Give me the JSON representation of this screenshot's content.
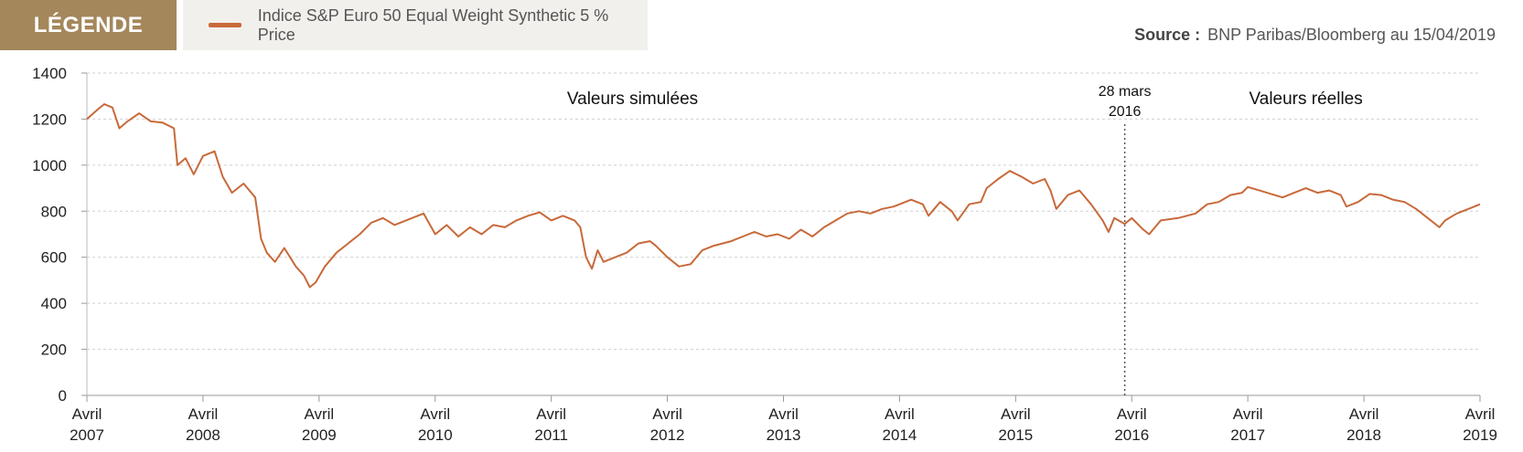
{
  "legend": {
    "tag": "LÉGENDE",
    "series_label": "Indice S&P Euro 50 Equal Weight Synthetic 5 % Price"
  },
  "source": {
    "label": "Source :",
    "text": "BNP Paribas/Bloomberg au 15/04/2019"
  },
  "colors": {
    "accent": "#a4875b",
    "line": "#c8693a",
    "grid": "#cfcfcf"
  },
  "chart_data": {
    "type": "line",
    "title": "",
    "xlabel": "",
    "ylabel": "",
    "ylim": [
      0,
      1400
    ],
    "xlim": [
      2007.3,
      2019.3
    ],
    "y_ticks": [
      0,
      200,
      400,
      600,
      800,
      1000,
      1200,
      1400
    ],
    "x_ticks": [
      {
        "x": 2007.3,
        "line1": "Avril",
        "line2": "2007"
      },
      {
        "x": 2008.3,
        "line1": "Avril",
        "line2": "2008"
      },
      {
        "x": 2009.3,
        "line1": "Avril",
        "line2": "2009"
      },
      {
        "x": 2010.3,
        "line1": "Avril",
        "line2": "2010"
      },
      {
        "x": 2011.3,
        "line1": "Avril",
        "line2": "2011"
      },
      {
        "x": 2012.3,
        "line1": "Avril",
        "line2": "2012"
      },
      {
        "x": 2013.3,
        "line1": "Avril",
        "line2": "2013"
      },
      {
        "x": 2014.3,
        "line1": "Avril",
        "line2": "2014"
      },
      {
        "x": 2015.3,
        "line1": "Avril",
        "line2": "2015"
      },
      {
        "x": 2016.3,
        "line1": "Avril",
        "line2": "2016"
      },
      {
        "x": 2017.3,
        "line1": "Avril",
        "line2": "2017"
      },
      {
        "x": 2018.3,
        "line1": "Avril",
        "line2": "2018"
      },
      {
        "x": 2019.3,
        "line1": "Avril",
        "line2": "2019"
      }
    ],
    "grid": true,
    "annotations": {
      "simulated": "Valeurs simulées",
      "real": "Valeurs réelles",
      "marker_line1": "28 mars",
      "marker_line2": "2016",
      "marker_x": 2016.24
    },
    "series": [
      {
        "name": "Indice S&P Euro 50 Equal Weight Synthetic 5 % Price",
        "points": [
          [
            2007.3,
            1200
          ],
          [
            2007.4,
            1245
          ],
          [
            2007.45,
            1265
          ],
          [
            2007.52,
            1250
          ],
          [
            2007.58,
            1160
          ],
          [
            2007.65,
            1190
          ],
          [
            2007.75,
            1225
          ],
          [
            2007.85,
            1190
          ],
          [
            2007.95,
            1185
          ],
          [
            2008.05,
            1160
          ],
          [
            2008.08,
            1000
          ],
          [
            2008.15,
            1030
          ],
          [
            2008.22,
            960
          ],
          [
            2008.3,
            1040
          ],
          [
            2008.4,
            1060
          ],
          [
            2008.47,
            950
          ],
          [
            2008.55,
            880
          ],
          [
            2008.65,
            920
          ],
          [
            2008.75,
            860
          ],
          [
            2008.8,
            680
          ],
          [
            2008.85,
            620
          ],
          [
            2008.92,
            580
          ],
          [
            2009.0,
            640
          ],
          [
            2009.1,
            560
          ],
          [
            2009.17,
            520
          ],
          [
            2009.22,
            470
          ],
          [
            2009.27,
            490
          ],
          [
            2009.35,
            560
          ],
          [
            2009.45,
            620
          ],
          [
            2009.55,
            660
          ],
          [
            2009.65,
            700
          ],
          [
            2009.75,
            750
          ],
          [
            2009.85,
            770
          ],
          [
            2009.95,
            740
          ],
          [
            2010.1,
            770
          ],
          [
            2010.2,
            790
          ],
          [
            2010.3,
            700
          ],
          [
            2010.4,
            740
          ],
          [
            2010.5,
            690
          ],
          [
            2010.6,
            730
          ],
          [
            2010.7,
            700
          ],
          [
            2010.8,
            740
          ],
          [
            2010.9,
            730
          ],
          [
            2011.0,
            760
          ],
          [
            2011.1,
            780
          ],
          [
            2011.2,
            795
          ],
          [
            2011.3,
            760
          ],
          [
            2011.4,
            780
          ],
          [
            2011.5,
            760
          ],
          [
            2011.55,
            730
          ],
          [
            2011.6,
            600
          ],
          [
            2011.65,
            550
          ],
          [
            2011.7,
            630
          ],
          [
            2011.75,
            580
          ],
          [
            2011.85,
            600
          ],
          [
            2011.95,
            620
          ],
          [
            2012.05,
            660
          ],
          [
            2012.15,
            670
          ],
          [
            2012.2,
            650
          ],
          [
            2012.3,
            600
          ],
          [
            2012.4,
            560
          ],
          [
            2012.5,
            570
          ],
          [
            2012.6,
            630
          ],
          [
            2012.7,
            650
          ],
          [
            2012.85,
            670
          ],
          [
            2012.95,
            690
          ],
          [
            2013.05,
            710
          ],
          [
            2013.15,
            690
          ],
          [
            2013.25,
            700
          ],
          [
            2013.35,
            680
          ],
          [
            2013.45,
            720
          ],
          [
            2013.55,
            690
          ],
          [
            2013.65,
            730
          ],
          [
            2013.75,
            760
          ],
          [
            2013.85,
            790
          ],
          [
            2013.95,
            800
          ],
          [
            2014.05,
            790
          ],
          [
            2014.15,
            810
          ],
          [
            2014.25,
            820
          ],
          [
            2014.4,
            850
          ],
          [
            2014.5,
            830
          ],
          [
            2014.55,
            780
          ],
          [
            2014.65,
            840
          ],
          [
            2014.75,
            800
          ],
          [
            2014.8,
            760
          ],
          [
            2014.9,
            830
          ],
          [
            2015.0,
            840
          ],
          [
            2015.05,
            900
          ],
          [
            2015.15,
            940
          ],
          [
            2015.25,
            975
          ],
          [
            2015.35,
            950
          ],
          [
            2015.45,
            920
          ],
          [
            2015.55,
            940
          ],
          [
            2015.6,
            890
          ],
          [
            2015.65,
            810
          ],
          [
            2015.75,
            870
          ],
          [
            2015.85,
            890
          ],
          [
            2015.95,
            830
          ],
          [
            2016.05,
            760
          ],
          [
            2016.1,
            710
          ],
          [
            2016.15,
            770
          ],
          [
            2016.24,
            745
          ],
          [
            2016.3,
            770
          ],
          [
            2016.4,
            720
          ],
          [
            2016.45,
            700
          ],
          [
            2016.55,
            760
          ],
          [
            2016.7,
            770
          ],
          [
            2016.85,
            790
          ],
          [
            2016.95,
            830
          ],
          [
            2017.05,
            840
          ],
          [
            2017.15,
            870
          ],
          [
            2017.25,
            880
          ],
          [
            2017.3,
            905
          ],
          [
            2017.4,
            890
          ],
          [
            2017.5,
            875
          ],
          [
            2017.6,
            860
          ],
          [
            2017.7,
            880
          ],
          [
            2017.8,
            900
          ],
          [
            2017.9,
            880
          ],
          [
            2018.0,
            890
          ],
          [
            2018.1,
            870
          ],
          [
            2018.15,
            820
          ],
          [
            2018.25,
            840
          ],
          [
            2018.35,
            875
          ],
          [
            2018.45,
            870
          ],
          [
            2018.55,
            850
          ],
          [
            2018.65,
            840
          ],
          [
            2018.75,
            810
          ],
          [
            2018.85,
            770
          ],
          [
            2018.95,
            730
          ],
          [
            2019.0,
            760
          ],
          [
            2019.1,
            790
          ],
          [
            2019.2,
            810
          ],
          [
            2019.3,
            830
          ]
        ]
      }
    ]
  }
}
